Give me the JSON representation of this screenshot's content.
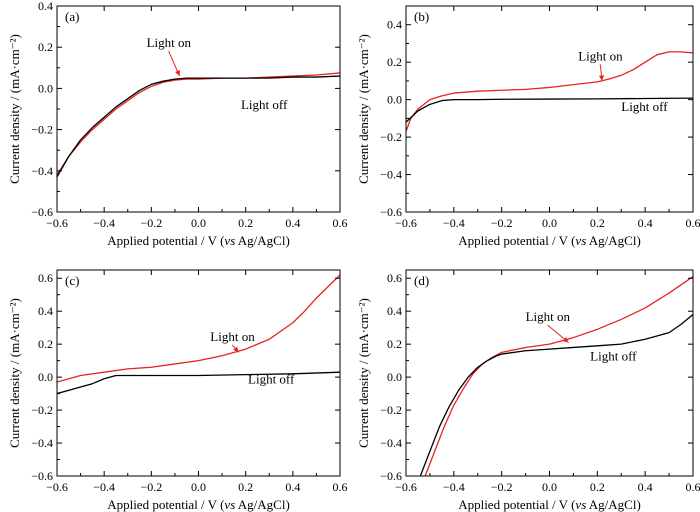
{
  "colors": {
    "light_on": "#e8231f",
    "light_off": "#000000"
  },
  "chart_data": [
    {
      "panel": "(a)",
      "type": "line",
      "xlabel": "Applied potential / V (vs Ag/AgCl)",
      "ylabel": "Current density / (mA·cm⁻²)",
      "xlim": [
        -0.6,
        0.6
      ],
      "ylim": [
        -0.6,
        0.4
      ],
      "xticks": [
        -0.6,
        -0.4,
        -0.2,
        0.0,
        0.2,
        0.4,
        0.6
      ],
      "xtick_labels": [
        "−0.6",
        "−0.4",
        "−0.2",
        "0.0",
        "0.2",
        "0.4",
        "0.6"
      ],
      "yticks": [
        -0.6,
        -0.4,
        -0.2,
        0.0,
        0.2,
        0.4
      ],
      "ytick_labels": [
        "−0.6",
        "−0.4",
        "−0.2",
        "0.0",
        "0.2",
        "0.4"
      ],
      "series": [
        {
          "name": "Light on",
          "color": "#e8231f",
          "x": [
            -0.6,
            -0.55,
            -0.5,
            -0.45,
            -0.4,
            -0.35,
            -0.3,
            -0.25,
            -0.2,
            -0.15,
            -0.1,
            -0.05,
            0.0,
            0.1,
            0.2,
            0.3,
            0.4,
            0.5,
            0.6
          ],
          "y": [
            -0.42,
            -0.33,
            -0.26,
            -0.2,
            -0.15,
            -0.1,
            -0.06,
            -0.02,
            0.01,
            0.03,
            0.04,
            0.045,
            0.045,
            0.05,
            0.05,
            0.055,
            0.06,
            0.065,
            0.075
          ]
        },
        {
          "name": "Light off",
          "color": "#000000",
          "x": [
            -0.6,
            -0.55,
            -0.5,
            -0.45,
            -0.4,
            -0.35,
            -0.3,
            -0.25,
            -0.2,
            -0.15,
            -0.1,
            -0.05,
            0.0,
            0.1,
            0.2,
            0.3,
            0.4,
            0.5,
            0.6
          ],
          "y": [
            -0.43,
            -0.33,
            -0.25,
            -0.19,
            -0.14,
            -0.09,
            -0.05,
            -0.01,
            0.02,
            0.035,
            0.045,
            0.05,
            0.05,
            0.05,
            0.05,
            0.05,
            0.055,
            0.055,
            0.06
          ]
        }
      ],
      "annotations": [
        {
          "text": "Light on",
          "x": -0.22,
          "y": 0.2,
          "ax": -0.08,
          "ay": 0.06
        },
        {
          "text": "Light off",
          "x": 0.18,
          "y": -0.1
        }
      ]
    },
    {
      "panel": "(b)",
      "type": "line",
      "xlabel": "Applied potential / V (vs Ag/AgCl)",
      "ylabel": "Current density / (mA·cm⁻²)",
      "xlim": [
        -0.6,
        0.6
      ],
      "ylim": [
        -0.6,
        0.5
      ],
      "xticks": [
        -0.6,
        -0.4,
        -0.2,
        0.0,
        0.2,
        0.4,
        0.6
      ],
      "xtick_labels": [
        "−0.6",
        "−0.4",
        "−0.2",
        "0.0",
        "0.2",
        "0.4",
        "0.6"
      ],
      "yticks": [
        -0.6,
        -0.4,
        -0.2,
        0.0,
        0.2,
        0.4
      ],
      "ytick_labels": [
        "−0.6",
        "−0.4",
        "−0.2",
        "0.0",
        "0.2",
        "0.4"
      ],
      "series": [
        {
          "name": "Light on",
          "color": "#e8231f",
          "x": [
            -0.6,
            -0.58,
            -0.55,
            -0.5,
            -0.45,
            -0.4,
            -0.3,
            -0.2,
            -0.1,
            0.0,
            0.1,
            0.2,
            0.25,
            0.3,
            0.35,
            0.4,
            0.45,
            0.5,
            0.55,
            0.6
          ],
          "y": [
            -0.17,
            -0.1,
            -0.05,
            0.0,
            0.02,
            0.035,
            0.045,
            0.05,
            0.055,
            0.065,
            0.08,
            0.095,
            0.11,
            0.13,
            0.16,
            0.2,
            0.24,
            0.255,
            0.255,
            0.25
          ]
        },
        {
          "name": "Light off",
          "color": "#000000",
          "x": [
            -0.6,
            -0.55,
            -0.5,
            -0.45,
            -0.4,
            -0.3,
            -0.2,
            0.0,
            0.2,
            0.4,
            0.6
          ],
          "y": [
            -0.12,
            -0.06,
            -0.025,
            -0.005,
            0.0,
            0.0,
            0.002,
            0.003,
            0.004,
            0.006,
            0.008
          ]
        }
      ],
      "annotations": [
        {
          "text": "Light on",
          "x": 0.12,
          "y": 0.21,
          "ax": 0.22,
          "ay": 0.1
        },
        {
          "text": "Light off",
          "x": 0.3,
          "y": -0.06
        }
      ]
    },
    {
      "panel": "(c)",
      "type": "line",
      "xlabel": "Applied potential / V (vs Ag/AgCl)",
      "ylabel": "Current density / (mA·cm⁻²)",
      "xlim": [
        -0.6,
        0.6
      ],
      "ylim": [
        -0.6,
        0.65
      ],
      "xticks": [
        -0.6,
        -0.4,
        -0.2,
        0.0,
        0.2,
        0.4,
        0.6
      ],
      "xtick_labels": [
        "−0.6",
        "−0.4",
        "−0.2",
        "0.0",
        "0.2",
        "0.4",
        "0.6"
      ],
      "yticks": [
        -0.6,
        -0.4,
        -0.2,
        0.0,
        0.2,
        0.4,
        0.6
      ],
      "ytick_labels": [
        "−0.6",
        "−0.4",
        "−0.2",
        "0.0",
        "0.2",
        "0.4",
        "0.6"
      ],
      "series": [
        {
          "name": "Light on",
          "color": "#e8231f",
          "x": [
            -0.6,
            -0.5,
            -0.4,
            -0.3,
            -0.2,
            -0.1,
            0.0,
            0.1,
            0.2,
            0.3,
            0.35,
            0.4,
            0.45,
            0.5,
            0.55,
            0.6
          ],
          "y": [
            -0.03,
            0.01,
            0.03,
            0.05,
            0.06,
            0.08,
            0.1,
            0.13,
            0.17,
            0.23,
            0.28,
            0.33,
            0.4,
            0.48,
            0.55,
            0.62
          ]
        },
        {
          "name": "Light off",
          "color": "#000000",
          "x": [
            -0.6,
            -0.5,
            -0.45,
            -0.4,
            -0.35,
            -0.3,
            -0.2,
            0.0,
            0.2,
            0.4,
            0.6
          ],
          "y": [
            -0.1,
            -0.06,
            -0.04,
            -0.01,
            0.01,
            0.01,
            0.01,
            0.01,
            0.015,
            0.02,
            0.03
          ]
        }
      ],
      "annotations": [
        {
          "text": "Light on",
          "x": 0.05,
          "y": 0.22,
          "ax": 0.17,
          "ay": 0.15
        },
        {
          "text": "Light off",
          "x": 0.21,
          "y": -0.04
        }
      ]
    },
    {
      "panel": "(d)",
      "type": "line",
      "xlabel": "Applied potential / V (vs Ag/AgCl)",
      "ylabel": "Current density / (mA·cm⁻²)",
      "xlim": [
        -0.6,
        0.6
      ],
      "ylim": [
        -0.6,
        0.65
      ],
      "xticks": [
        -0.6,
        -0.4,
        -0.2,
        0.0,
        0.2,
        0.4,
        0.6
      ],
      "xtick_labels": [
        "−0.6",
        "−0.4",
        "−0.2",
        "0.0",
        "0.2",
        "0.4",
        "0.6"
      ],
      "yticks": [
        -0.6,
        -0.4,
        -0.2,
        0.0,
        0.2,
        0.4,
        0.6
      ],
      "ytick_labels": [
        "−0.6",
        "−0.4",
        "−0.2",
        "0.0",
        "0.2",
        "0.4",
        "0.6"
      ],
      "series": [
        {
          "name": "Light on",
          "color": "#e8231f",
          "x": [
            -0.52,
            -0.48,
            -0.44,
            -0.4,
            -0.36,
            -0.32,
            -0.28,
            -0.24,
            -0.2,
            -0.1,
            0.0,
            0.1,
            0.2,
            0.3,
            0.4,
            0.5,
            0.6
          ],
          "y": [
            -0.6,
            -0.45,
            -0.3,
            -0.17,
            -0.07,
            0.02,
            0.08,
            0.12,
            0.15,
            0.18,
            0.2,
            0.24,
            0.29,
            0.35,
            0.42,
            0.51,
            0.61
          ]
        },
        {
          "name": "Light off",
          "color": "#000000",
          "x": [
            -0.54,
            -0.5,
            -0.46,
            -0.42,
            -0.38,
            -0.34,
            -0.3,
            -0.26,
            -0.22,
            -0.2,
            -0.1,
            0.0,
            0.1,
            0.2,
            0.3,
            0.4,
            0.5,
            0.55,
            0.6
          ],
          "y": [
            -0.6,
            -0.45,
            -0.3,
            -0.18,
            -0.08,
            0.0,
            0.06,
            0.1,
            0.13,
            0.14,
            0.16,
            0.17,
            0.18,
            0.19,
            0.2,
            0.23,
            0.27,
            0.32,
            0.38
          ]
        }
      ],
      "annotations": [
        {
          "text": "Light on",
          "x": -0.1,
          "y": 0.34,
          "ax": 0.08,
          "ay": 0.21
        },
        {
          "text": "Light off",
          "x": 0.17,
          "y": 0.1
        }
      ]
    }
  ]
}
